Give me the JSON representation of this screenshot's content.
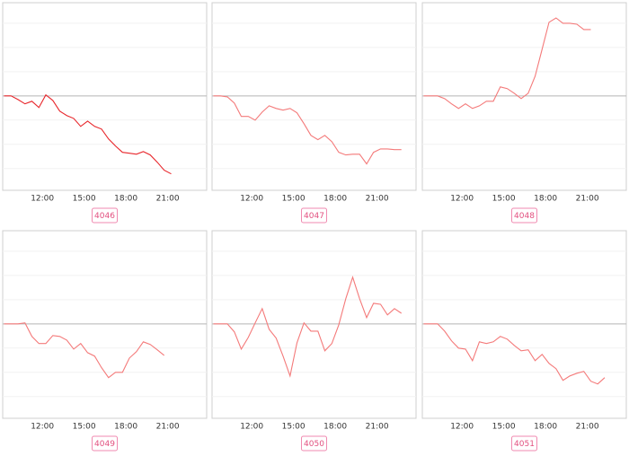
{
  "chart_data": [
    {
      "type": "line",
      "label": "4046",
      "color": "#e8262b",
      "x": [
        9.25,
        9.75,
        10.25,
        10.75,
        11.25,
        11.75,
        12.25,
        12.75,
        13.25,
        13.75,
        14.25,
        14.75,
        15.25,
        15.75,
        16.25,
        16.75,
        17.25,
        17.75,
        18.25,
        18.75,
        19.25,
        19.75,
        20.25,
        20.75,
        21.25
      ],
      "values": [
        0,
        0,
        -0.15,
        -0.33,
        -0.22,
        -0.48,
        0.04,
        -0.19,
        -0.63,
        -0.81,
        -0.93,
        -1.26,
        -1.04,
        -1.26,
        -1.37,
        -1.78,
        -2.07,
        -2.33,
        -2.37,
        -2.41,
        -2.3,
        -2.44,
        -2.74,
        -3.07,
        -3.22
      ],
      "xlim": [
        9.15,
        23.8
      ],
      "ylim": [
        -3.9,
        3.85
      ],
      "baseline": 0,
      "ygrid": [
        -3,
        -2,
        -1,
        1,
        2,
        3
      ],
      "xticks": [
        {
          "value": 12,
          "label": "12:00"
        },
        {
          "value": 15,
          "label": "15:00"
        },
        {
          "value": 18,
          "label": "18:00"
        },
        {
          "value": 21,
          "label": "21:00"
        }
      ]
    },
    {
      "type": "line",
      "label": "4047",
      "color": "#f47a7a",
      "x": [
        9.25,
        9.75,
        10.25,
        10.75,
        11.25,
        11.75,
        12.25,
        12.75,
        13.25,
        13.75,
        14.25,
        14.75,
        15.25,
        15.75,
        16.25,
        16.75,
        17.25,
        17.75,
        18.25,
        18.75,
        19.25,
        19.75,
        20.25,
        20.75,
        21.25,
        21.75,
        22.25,
        22.75
      ],
      "values": [
        0,
        0,
        -0.04,
        -0.3,
        -0.85,
        -0.85,
        -1,
        -0.67,
        -0.41,
        -0.52,
        -0.59,
        -0.52,
        -0.7,
        -1.15,
        -1.63,
        -1.81,
        -1.63,
        -1.89,
        -2.33,
        -2.44,
        -2.41,
        -2.41,
        -2.81,
        -2.33,
        -2.19,
        -2.19,
        -2.22,
        -2.22
      ],
      "xlim": [
        9.15,
        23.8
      ],
      "ylim": [
        -3.9,
        3.85
      ],
      "baseline": 0,
      "ygrid": [
        -3,
        -2,
        -1,
        1,
        2,
        3
      ],
      "xticks": [
        {
          "value": 12,
          "label": "12:00"
        },
        {
          "value": 15,
          "label": "15:00"
        },
        {
          "value": 18,
          "label": "18:00"
        },
        {
          "value": 21,
          "label": "21:00"
        }
      ]
    },
    {
      "type": "line",
      "label": "4048",
      "color": "#f47a7a",
      "x": [
        9.25,
        9.75,
        10.25,
        10.75,
        11.25,
        11.75,
        12.25,
        12.75,
        13.25,
        13.75,
        14.25,
        14.75,
        15.25,
        15.75,
        16.25,
        16.75,
        17.25,
        17.75,
        18.25,
        18.75,
        19.25,
        19.75,
        20.25,
        20.75,
        21.25
      ],
      "values": [
        0,
        0,
        0,
        -0.11,
        -0.33,
        -0.52,
        -0.33,
        -0.52,
        -0.41,
        -0.22,
        -0.22,
        0.37,
        0.3,
        0.11,
        -0.11,
        0.11,
        0.81,
        1.93,
        3.04,
        3.22,
        3,
        3,
        2.96,
        2.74,
        2.74
      ],
      "xlim": [
        9.15,
        23.8
      ],
      "ylim": [
        -3.9,
        3.85
      ],
      "baseline": 0,
      "ygrid": [
        -3,
        -2,
        -1,
        1,
        2,
        3
      ],
      "xticks": [
        {
          "value": 12,
          "label": "12:00"
        },
        {
          "value": 15,
          "label": "15:00"
        },
        {
          "value": 18,
          "label": "18:00"
        },
        {
          "value": 21,
          "label": "21:00"
        }
      ]
    },
    {
      "type": "line",
      "label": "4049",
      "color": "#f47a7a",
      "x": [
        9.25,
        9.75,
        10.25,
        10.75,
        11.25,
        11.75,
        12.25,
        12.75,
        13.25,
        13.75,
        14.25,
        14.75,
        15.25,
        15.75,
        16.25,
        16.75,
        17.25,
        17.75,
        18.25,
        18.75,
        19.25,
        19.75,
        20.25,
        20.75
      ],
      "values": [
        0,
        0,
        0,
        0.04,
        -0.52,
        -0.81,
        -0.81,
        -0.48,
        -0.52,
        -0.67,
        -1.04,
        -0.81,
        -1.19,
        -1.33,
        -1.81,
        -2.22,
        -2,
        -2,
        -1.41,
        -1.15,
        -0.74,
        -0.85,
        -1.07,
        -1.3
      ],
      "xlim": [
        9.15,
        23.8
      ],
      "ylim": [
        -3.9,
        3.85
      ],
      "baseline": 0,
      "ygrid": [
        -3,
        -2,
        -1,
        1,
        2,
        3
      ],
      "xticks": [
        {
          "value": 12,
          "label": "12:00"
        },
        {
          "value": 15,
          "label": "15:00"
        },
        {
          "value": 18,
          "label": "18:00"
        },
        {
          "value": 21,
          "label": "21:00"
        }
      ]
    },
    {
      "type": "line",
      "label": "4050",
      "color": "#f47a7a",
      "x": [
        9.25,
        9.75,
        10.25,
        10.75,
        11.25,
        11.75,
        12.25,
        12.75,
        13.25,
        13.75,
        14.25,
        14.75,
        15.25,
        15.75,
        16.25,
        16.75,
        17.25,
        17.75,
        18.25,
        18.75,
        19.25,
        19.75,
        20.25,
        20.75,
        21.25,
        21.75,
        22.25,
        22.75
      ],
      "values": [
        0,
        0,
        0,
        -0.33,
        -1.04,
        -0.56,
        0.04,
        0.63,
        -0.22,
        -0.59,
        -1.33,
        -2.15,
        -0.78,
        0.04,
        -0.3,
        -0.3,
        -1.11,
        -0.81,
        -0.04,
        1.04,
        1.93,
        1.04,
        0.26,
        0.85,
        0.81,
        0.37,
        0.63,
        0.44
      ],
      "xlim": [
        9.15,
        23.8
      ],
      "ylim": [
        -3.9,
        3.85
      ],
      "baseline": 0,
      "ygrid": [
        -3,
        -2,
        -1,
        1,
        2,
        3
      ],
      "xticks": [
        {
          "value": 12,
          "label": "12:00"
        },
        {
          "value": 15,
          "label": "15:00"
        },
        {
          "value": 18,
          "label": "18:00"
        },
        {
          "value": 21,
          "label": "21:00"
        }
      ]
    },
    {
      "type": "line",
      "label": "4051",
      "color": "#f47a7a",
      "x": [
        9.25,
        9.75,
        10.25,
        10.75,
        11.25,
        11.75,
        12.25,
        12.75,
        13.25,
        13.75,
        14.25,
        14.75,
        15.25,
        15.75,
        16.25,
        16.75,
        17.25,
        17.75,
        18.25,
        18.75,
        19.25,
        19.75,
        20.25,
        20.75,
        21.25,
        21.75,
        22.25
      ],
      "values": [
        0,
        0,
        0,
        -0.3,
        -0.7,
        -1,
        -1.04,
        -1.52,
        -0.74,
        -0.81,
        -0.74,
        -0.52,
        -0.63,
        -0.89,
        -1.11,
        -1.07,
        -1.52,
        -1.26,
        -1.63,
        -1.85,
        -2.33,
        -2.15,
        -2.04,
        -1.96,
        -2.37,
        -2.48,
        -2.22
      ],
      "xlim": [
        9.15,
        23.8
      ],
      "ylim": [
        -3.9,
        3.85
      ],
      "baseline": 0,
      "ygrid": [
        -3,
        -2,
        -1,
        1,
        2,
        3
      ],
      "xticks": [
        {
          "value": 12,
          "label": "12:00"
        },
        {
          "value": 15,
          "label": "15:00"
        },
        {
          "value": 18,
          "label": "18:00"
        },
        {
          "value": 21,
          "label": "21:00"
        }
      ]
    }
  ]
}
